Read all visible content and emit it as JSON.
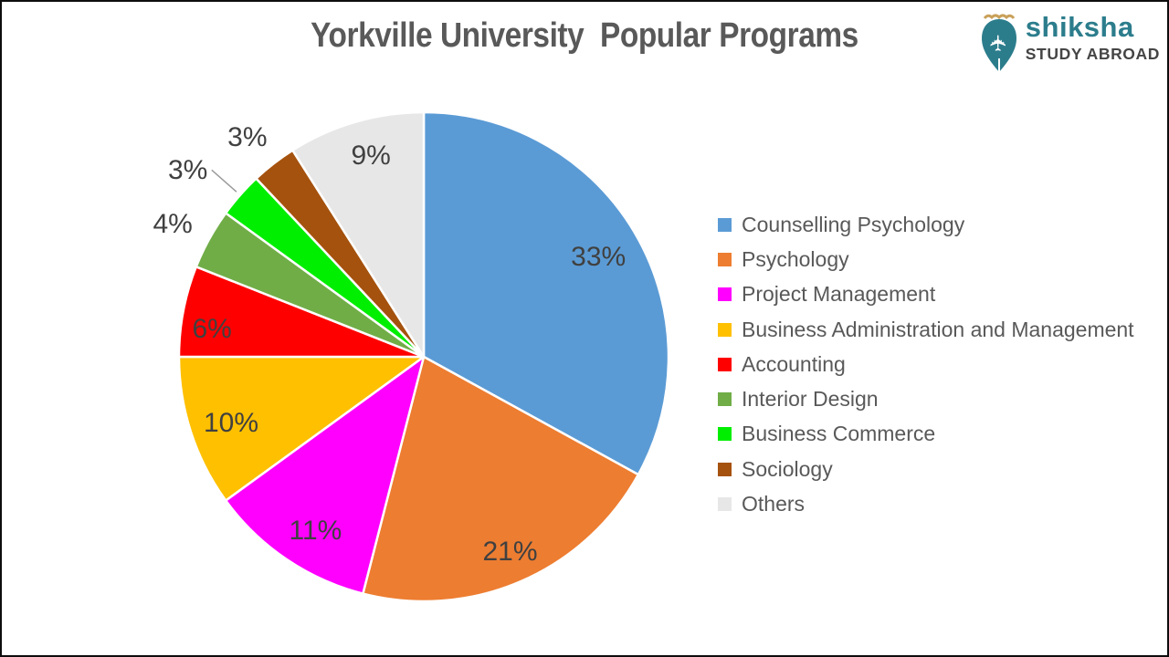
{
  "page": {
    "title": "Yorkville University  Popular Programs"
  },
  "logo": {
    "brand": "shiksha",
    "tagline": "STUDY ABROAD",
    "brand_color": "#2C7D8C",
    "tagline_color": "#454545",
    "icon": "pen-nib-airplane-icon",
    "icon_ornament_color": "#C9A05A"
  },
  "chart_data": {
    "type": "pie",
    "title": "Yorkville University  Popular Programs",
    "start_angle_deg": 0,
    "direction": "clockwise",
    "legend_position": "right",
    "data_labels": "percent",
    "label_text_color": "#404040",
    "legend_text_color": "#595959",
    "slice_border_color": "#ffffff",
    "series": [
      {
        "label": "Counselling Psychology",
        "value": 33,
        "pct_label": "33%",
        "color": "#5B9BD5",
        "label_placement": "inside"
      },
      {
        "label": "Psychology",
        "value": 21,
        "pct_label": "21%",
        "color": "#ED7D31",
        "label_placement": "inside"
      },
      {
        "label": "Project Management",
        "value": 11,
        "pct_label": "11%",
        "color": "#FF00FF",
        "label_placement": "inside"
      },
      {
        "label": "Business Administration and Management",
        "value": 10,
        "pct_label": "10%",
        "color": "#FFC000",
        "label_placement": "inside"
      },
      {
        "label": "Accounting",
        "value": 6,
        "pct_label": "6%",
        "color": "#FF0000",
        "label_placement": "inside"
      },
      {
        "label": "Interior Design",
        "value": 4,
        "pct_label": "4%",
        "color": "#70AD47",
        "label_placement": "outside"
      },
      {
        "label": "Business Commerce",
        "value": 3,
        "pct_label": "3%",
        "color": "#00EE00",
        "label_placement": "outside",
        "leader_line": true
      },
      {
        "label": "Sociology",
        "value": 3,
        "pct_label": "3%",
        "color": "#A5520E",
        "label_placement": "outside"
      },
      {
        "label": "Others",
        "value": 9,
        "pct_label": "9%",
        "color": "#E8E7E7",
        "label_placement": "inside"
      }
    ]
  }
}
